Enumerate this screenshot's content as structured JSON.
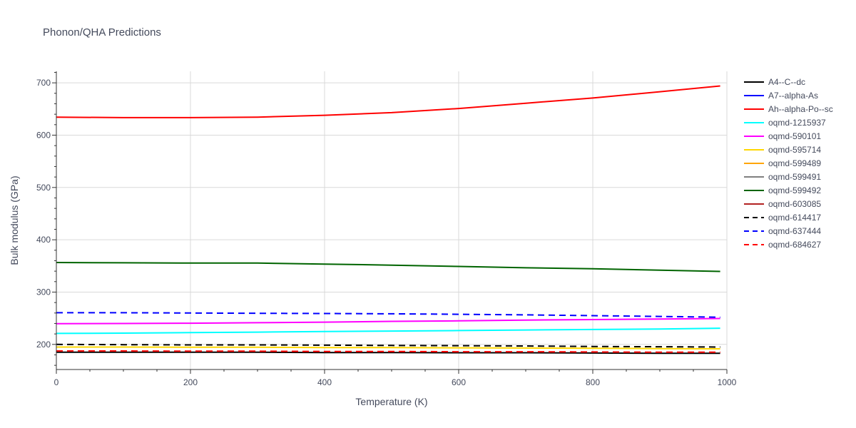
{
  "chart_data": {
    "type": "line",
    "title": "Phonon/QHA Predictions",
    "xlabel": "Temperature (K)",
    "ylabel": "Bulk modulus (GPa)",
    "xlim": [
      0,
      1000
    ],
    "ylim": [
      152,
      722
    ],
    "x_ticks": [
      0,
      200,
      400,
      600,
      800,
      1000
    ],
    "y_ticks": [
      200,
      300,
      400,
      500,
      600,
      700
    ],
    "grid": true,
    "legend_position": "right",
    "x": [
      0,
      100,
      200,
      300,
      400,
      500,
      600,
      700,
      800,
      900,
      990
    ],
    "series": [
      {
        "name": "A4--C--dc",
        "color": "#000000",
        "dash": "solid",
        "values": [
          185,
          185,
          185,
          185,
          184.5,
          184.5,
          184,
          184,
          183.5,
          183,
          183
        ]
      },
      {
        "name": "A7--alpha-As",
        "color": "#0000ff",
        "dash": "solid",
        "values": [
          null,
          null,
          null,
          null,
          null,
          null,
          null,
          null,
          null,
          null,
          null
        ]
      },
      {
        "name": "Ah--alpha-Po--sc",
        "color": "#ff0000",
        "dash": "solid",
        "values": [
          634.5,
          633.5,
          633.5,
          634.5,
          638,
          643,
          651,
          661,
          671,
          683,
          694
        ]
      },
      {
        "name": "oqmd-1215937",
        "color": "#00ffff",
        "dash": "solid",
        "values": [
          221,
          221.5,
          222.5,
          223.5,
          224.5,
          225.5,
          226.5,
          227.5,
          228.5,
          229.5,
          231
        ]
      },
      {
        "name": "oqmd-590101",
        "color": "#ff00ff",
        "dash": "solid",
        "values": [
          239.5,
          240,
          240.5,
          241.5,
          242.5,
          244,
          245,
          246.5,
          247.5,
          248.5,
          249.5
        ]
      },
      {
        "name": "oqmd-595714",
        "color": "#ffd700",
        "dash": "solid",
        "values": [
          195,
          195,
          194.5,
          194.5,
          194,
          194,
          193.5,
          193,
          192.5,
          192,
          191.5
        ]
      },
      {
        "name": "oqmd-599489",
        "color": "#ffa500",
        "dash": "solid",
        "values": [
          null,
          null,
          null,
          null,
          null,
          null,
          null,
          null,
          null,
          null,
          null
        ]
      },
      {
        "name": "oqmd-599491",
        "color": "#808080",
        "dash": "solid",
        "values": [
          null,
          null,
          null,
          null,
          null,
          null,
          null,
          null,
          null,
          null,
          null
        ]
      },
      {
        "name": "oqmd-599492",
        "color": "#006400",
        "dash": "solid",
        "values": [
          356.5,
          356,
          355.5,
          355.5,
          353.5,
          351.5,
          349,
          346.5,
          344.5,
          342,
          339.5
        ]
      },
      {
        "name": "oqmd-603085",
        "color": "#b22222",
        "dash": "solid",
        "values": [
          null,
          null,
          null,
          null,
          null,
          null,
          null,
          null,
          null,
          null,
          null
        ]
      },
      {
        "name": "oqmd-614417",
        "color": "#000000",
        "dash": "dash",
        "values": [
          200,
          199.5,
          199,
          199,
          198.5,
          198,
          197.5,
          197,
          196,
          195.5,
          195
        ]
      },
      {
        "name": "oqmd-637444",
        "color": "#0000ff",
        "dash": "dash",
        "values": [
          260.5,
          260.5,
          260,
          259.5,
          259,
          258.5,
          257.5,
          256.5,
          255,
          253.5,
          252
        ]
      },
      {
        "name": "oqmd-684627",
        "color": "#ff0000",
        "dash": "dash",
        "values": [
          187.5,
          187.5,
          187,
          187,
          186.5,
          186.5,
          186,
          186,
          185.5,
          185,
          185
        ]
      }
    ]
  }
}
